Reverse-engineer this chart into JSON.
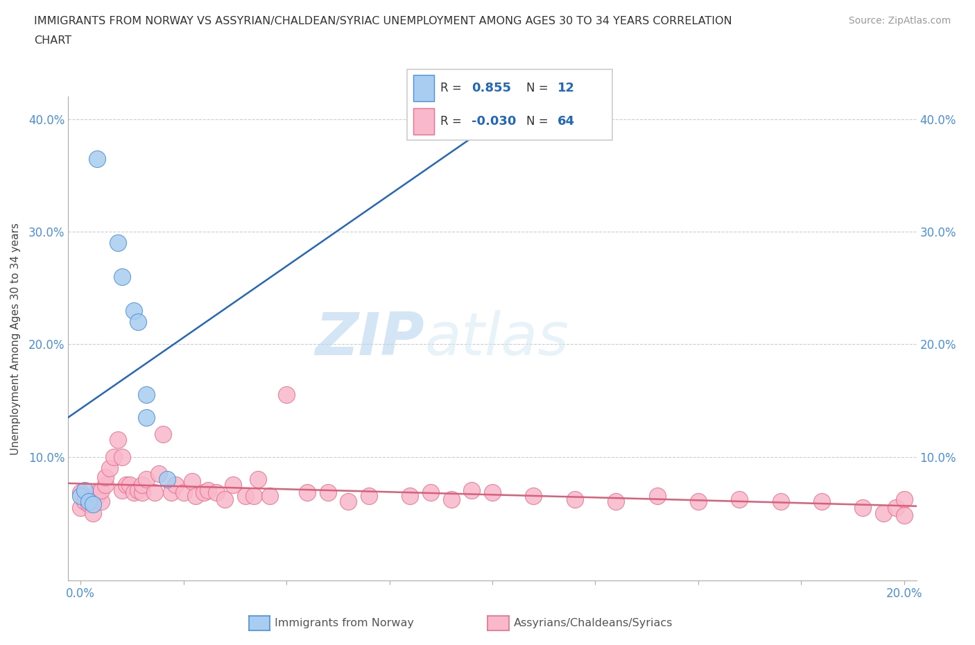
{
  "title_line1": "IMMIGRANTS FROM NORWAY VS ASSYRIAN/CHALDEAN/SYRIAC UNEMPLOYMENT AMONG AGES 30 TO 34 YEARS CORRELATION",
  "title_line2": "CHART",
  "source": "Source: ZipAtlas.com",
  "ylabel": "Unemployment Among Ages 30 to 34 years",
  "xlim": [
    -0.003,
    0.203
  ],
  "ylim": [
    -0.01,
    0.42
  ],
  "norway_color": "#a8cdf0",
  "norway_edge_color": "#4a90d9",
  "assyrian_color": "#f9b8cb",
  "assyrian_edge_color": "#e8708a",
  "norway_line_color": "#2267b8",
  "assyrian_line_color": "#d95f7a",
  "R_norway": "0.855",
  "N_norway": "12",
  "R_assyrian": "-0.030",
  "N_assyrian": "64",
  "watermark_zip": "ZIP",
  "watermark_atlas": "atlas",
  "norway_scatter_x": [
    0.004,
    0.009,
    0.01,
    0.013,
    0.014,
    0.016,
    0.016,
    0.021,
    0.0,
    0.001,
    0.002,
    0.003
  ],
  "norway_scatter_y": [
    0.365,
    0.29,
    0.26,
    0.23,
    0.22,
    0.155,
    0.135,
    0.08,
    0.065,
    0.07,
    0.06,
    0.058
  ],
  "assyrian_scatter_x": [
    0.0,
    0.0,
    0.001,
    0.002,
    0.003,
    0.003,
    0.004,
    0.004,
    0.005,
    0.005,
    0.006,
    0.006,
    0.007,
    0.008,
    0.009,
    0.01,
    0.01,
    0.011,
    0.012,
    0.013,
    0.014,
    0.015,
    0.015,
    0.016,
    0.018,
    0.019,
    0.02,
    0.022,
    0.023,
    0.025,
    0.027,
    0.028,
    0.03,
    0.031,
    0.033,
    0.035,
    0.037,
    0.04,
    0.042,
    0.043,
    0.046,
    0.05,
    0.055,
    0.06,
    0.065,
    0.07,
    0.08,
    0.085,
    0.09,
    0.095,
    0.1,
    0.11,
    0.12,
    0.13,
    0.14,
    0.15,
    0.16,
    0.17,
    0.18,
    0.19,
    0.195,
    0.198,
    0.2,
    0.2
  ],
  "assyrian_scatter_y": [
    0.068,
    0.055,
    0.06,
    0.058,
    0.05,
    0.062,
    0.065,
    0.068,
    0.06,
    0.07,
    0.075,
    0.082,
    0.09,
    0.1,
    0.115,
    0.07,
    0.1,
    0.075,
    0.075,
    0.068,
    0.07,
    0.068,
    0.075,
    0.08,
    0.068,
    0.085,
    0.12,
    0.068,
    0.075,
    0.068,
    0.078,
    0.065,
    0.068,
    0.07,
    0.068,
    0.062,
    0.075,
    0.065,
    0.065,
    0.08,
    0.065,
    0.155,
    0.068,
    0.068,
    0.06,
    0.065,
    0.065,
    0.068,
    0.062,
    0.07,
    0.068,
    0.065,
    0.062,
    0.06,
    0.065,
    0.06,
    0.062,
    0.06,
    0.06,
    0.055,
    0.05,
    0.055,
    0.062,
    0.048
  ]
}
